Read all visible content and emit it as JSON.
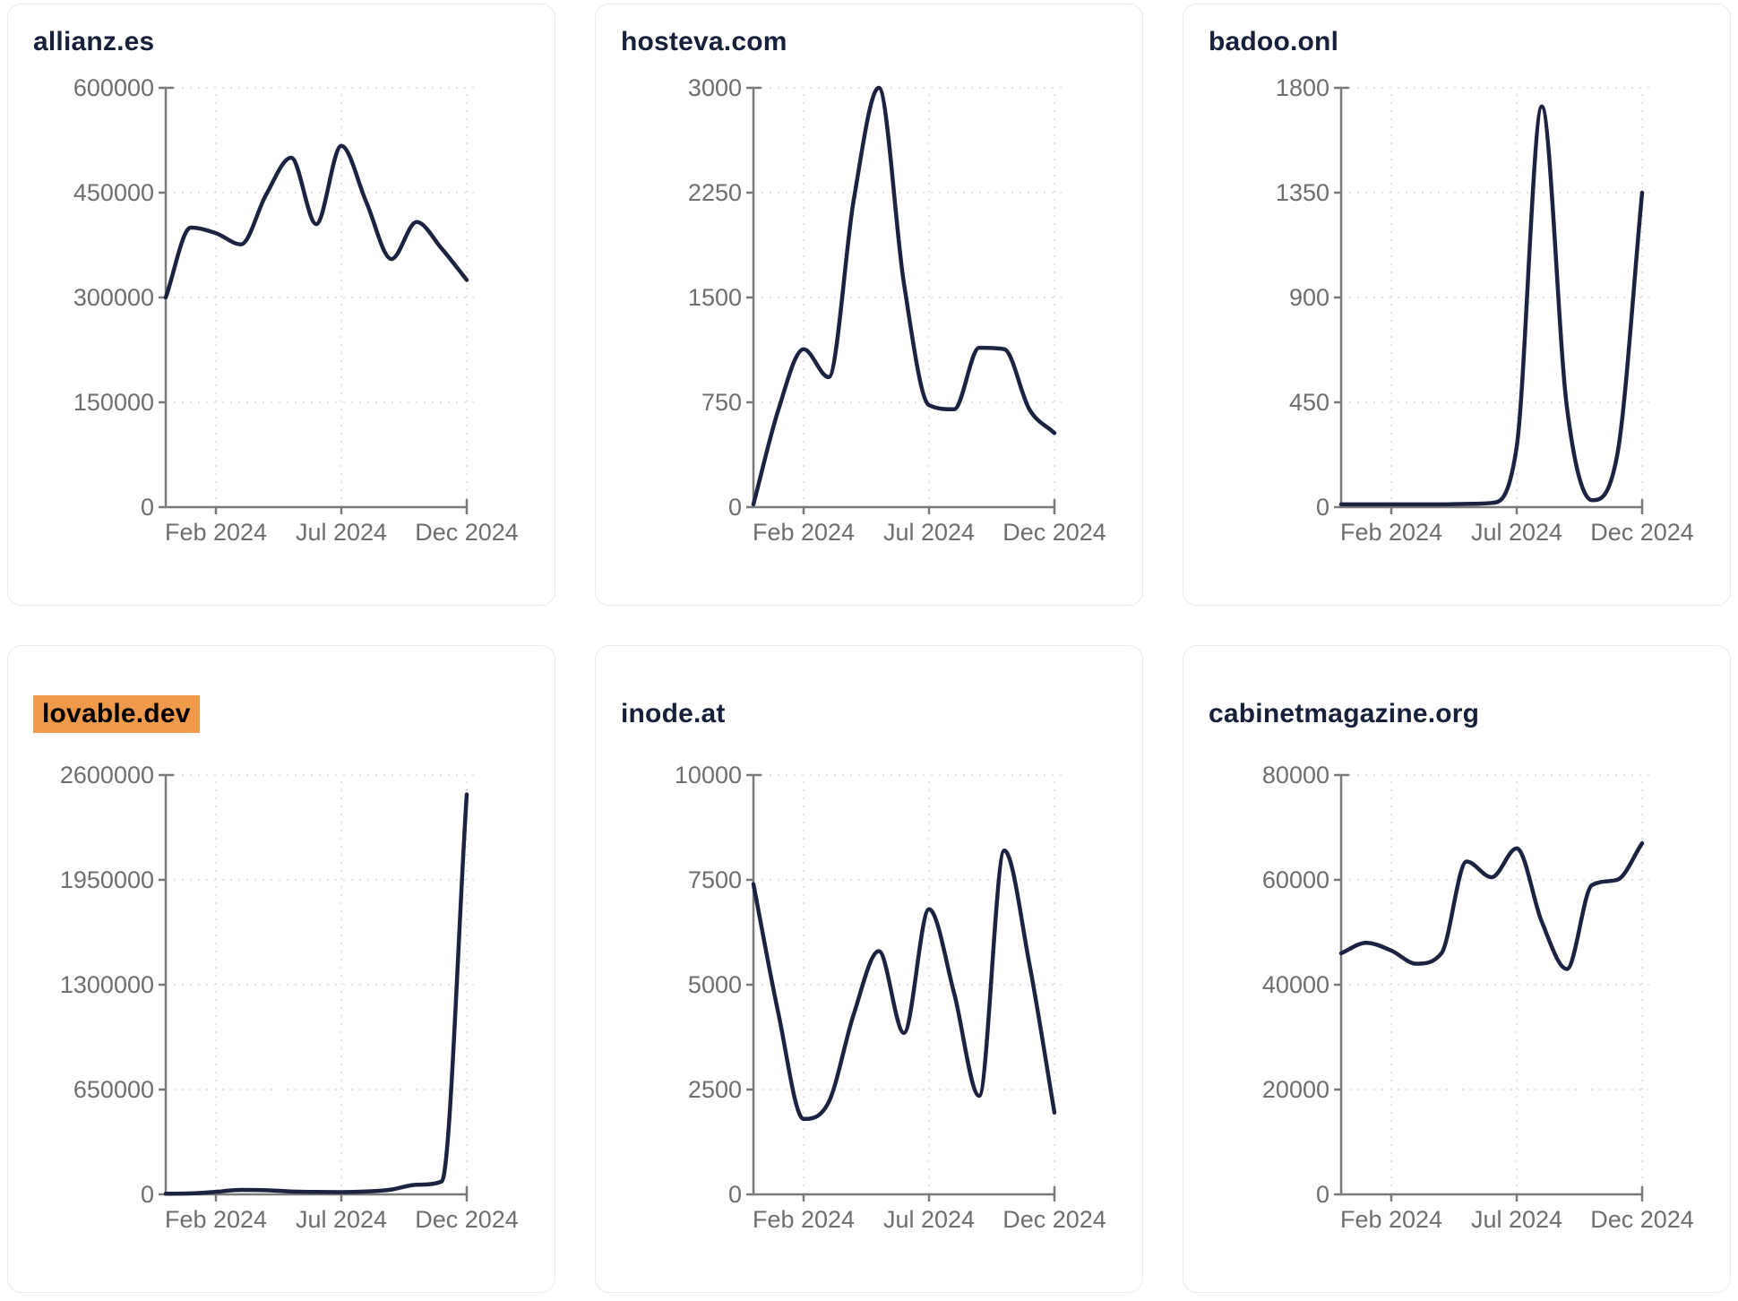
{
  "styles": {
    "line_color": "#1c2340",
    "axis_color": "#7a7a7a",
    "grid_color": "#e4e4e8",
    "tick_label_color": "#6e6e6e",
    "title_color": "#17203a",
    "card_border_color": "#eaeaee",
    "title_highlight_color": "#f09a4c",
    "background": "#ffffff"
  },
  "chart_data": [
    {
      "type": "line",
      "title": "allianz.es",
      "title_highlighted": false,
      "x": [
        "Dec 2023",
        "Jan 2024",
        "Feb 2024",
        "Mar 2024",
        "Apr 2024",
        "May 2024",
        "Jun 2024",
        "Jul 2024",
        "Aug 2024",
        "Sep 2024",
        "Oct 2024",
        "Nov 2024",
        "Dec 2024"
      ],
      "values": [
        300000,
        400000,
        392000,
        376000,
        447000,
        500000,
        405000,
        517000,
        436000,
        355000,
        408000,
        370000,
        325000
      ],
      "ylim": [
        0,
        600000
      ],
      "y_ticks": [
        0,
        150000,
        300000,
        450000,
        600000
      ],
      "x_tick_labels": [
        "Feb 2024",
        "Jul 2024",
        "Dec 2024"
      ],
      "x_tick_indices": [
        2,
        7,
        12
      ],
      "grid": true,
      "legend": "none"
    },
    {
      "type": "line",
      "title": "hosteva.com",
      "title_highlighted": false,
      "x": [
        "Dec 2023",
        "Jan 2024",
        "Feb 2024",
        "Mar 2024",
        "Apr 2024",
        "May 2024",
        "Jun 2024",
        "Jul 2024",
        "Aug 2024",
        "Sep 2024",
        "Oct 2024",
        "Nov 2024",
        "Dec 2024"
      ],
      "values": [
        20,
        700,
        1130,
        930,
        2200,
        3000,
        1600,
        730,
        700,
        1140,
        1130,
        700,
        530
      ],
      "ylim": [
        0,
        3000
      ],
      "y_ticks": [
        0,
        750,
        1500,
        2250,
        3000
      ],
      "x_tick_labels": [
        "Feb 2024",
        "Jul 2024",
        "Dec 2024"
      ],
      "x_tick_indices": [
        2,
        7,
        12
      ],
      "grid": true,
      "legend": "none"
    },
    {
      "type": "line",
      "title": "badoo.onl",
      "title_highlighted": false,
      "x": [
        "Dec 2023",
        "Jan 2024",
        "Feb 2024",
        "Mar 2024",
        "Apr 2024",
        "May 2024",
        "Jun 2024",
        "Jul 2024",
        "Aug 2024",
        "Sep 2024",
        "Oct 2024",
        "Nov 2024",
        "Dec 2024"
      ],
      "values": [
        12,
        12,
        12,
        12,
        12,
        14,
        18,
        260,
        1720,
        430,
        30,
        220,
        1350
      ],
      "ylim": [
        0,
        1800
      ],
      "y_ticks": [
        0,
        450,
        900,
        1350,
        1800
      ],
      "x_tick_labels": [
        "Feb 2024",
        "Jul 2024",
        "Dec 2024"
      ],
      "x_tick_indices": [
        2,
        7,
        12
      ],
      "grid": true,
      "legend": "none"
    },
    {
      "type": "line",
      "title": "lovable.dev",
      "title_highlighted": true,
      "x": [
        "Dec 2023",
        "Jan 2024",
        "Feb 2024",
        "Mar 2024",
        "Apr 2024",
        "May 2024",
        "Jun 2024",
        "Jul 2024",
        "Aug 2024",
        "Sep 2024",
        "Oct 2024",
        "Nov 2024",
        "Dec 2024"
      ],
      "values": [
        4000,
        6000,
        16000,
        28000,
        26000,
        18000,
        15000,
        14000,
        18000,
        30000,
        60000,
        80000,
        2480000
      ],
      "ylim": [
        0,
        2600000
      ],
      "y_ticks": [
        0,
        650000,
        1300000,
        1950000,
        2600000
      ],
      "x_tick_labels": [
        "Feb 2024",
        "Jul 2024",
        "Dec 2024"
      ],
      "x_tick_indices": [
        2,
        7,
        12
      ],
      "grid": true,
      "legend": "none"
    },
    {
      "type": "line",
      "title": "inode.at",
      "title_highlighted": false,
      "x": [
        "Dec 2023",
        "Jan 2024",
        "Feb 2024",
        "Mar 2024",
        "Apr 2024",
        "May 2024",
        "Jun 2024",
        "Jul 2024",
        "Aug 2024",
        "Sep 2024",
        "Oct 2024",
        "Nov 2024",
        "Dec 2024"
      ],
      "values": [
        7400,
        4300,
        1800,
        2200,
        4300,
        5800,
        3850,
        6800,
        4800,
        2350,
        8200,
        5500,
        1950
      ],
      "ylim": [
        0,
        10000
      ],
      "y_ticks": [
        0,
        2500,
        5000,
        7500,
        10000
      ],
      "x_tick_labels": [
        "Feb 2024",
        "Jul 2024",
        "Dec 2024"
      ],
      "x_tick_indices": [
        2,
        7,
        12
      ],
      "grid": true,
      "legend": "none"
    },
    {
      "type": "line",
      "title": "cabinetmagazine.org",
      "title_highlighted": false,
      "x": [
        "Dec 2023",
        "Jan 2024",
        "Feb 2024",
        "Mar 2024",
        "Apr 2024",
        "May 2024",
        "Jun 2024",
        "Jul 2024",
        "Aug 2024",
        "Sep 2024",
        "Oct 2024",
        "Nov 2024",
        "Dec 2024"
      ],
      "values": [
        46000,
        48000,
        46500,
        44000,
        46000,
        63500,
        60500,
        66000,
        52000,
        43000,
        59000,
        60000,
        67000
      ],
      "ylim": [
        0,
        80000
      ],
      "y_ticks": [
        0,
        20000,
        40000,
        60000,
        80000
      ],
      "x_tick_labels": [
        "Feb 2024",
        "Jul 2024",
        "Dec 2024"
      ],
      "x_tick_indices": [
        2,
        7,
        12
      ],
      "grid": true,
      "legend": "none"
    }
  ]
}
